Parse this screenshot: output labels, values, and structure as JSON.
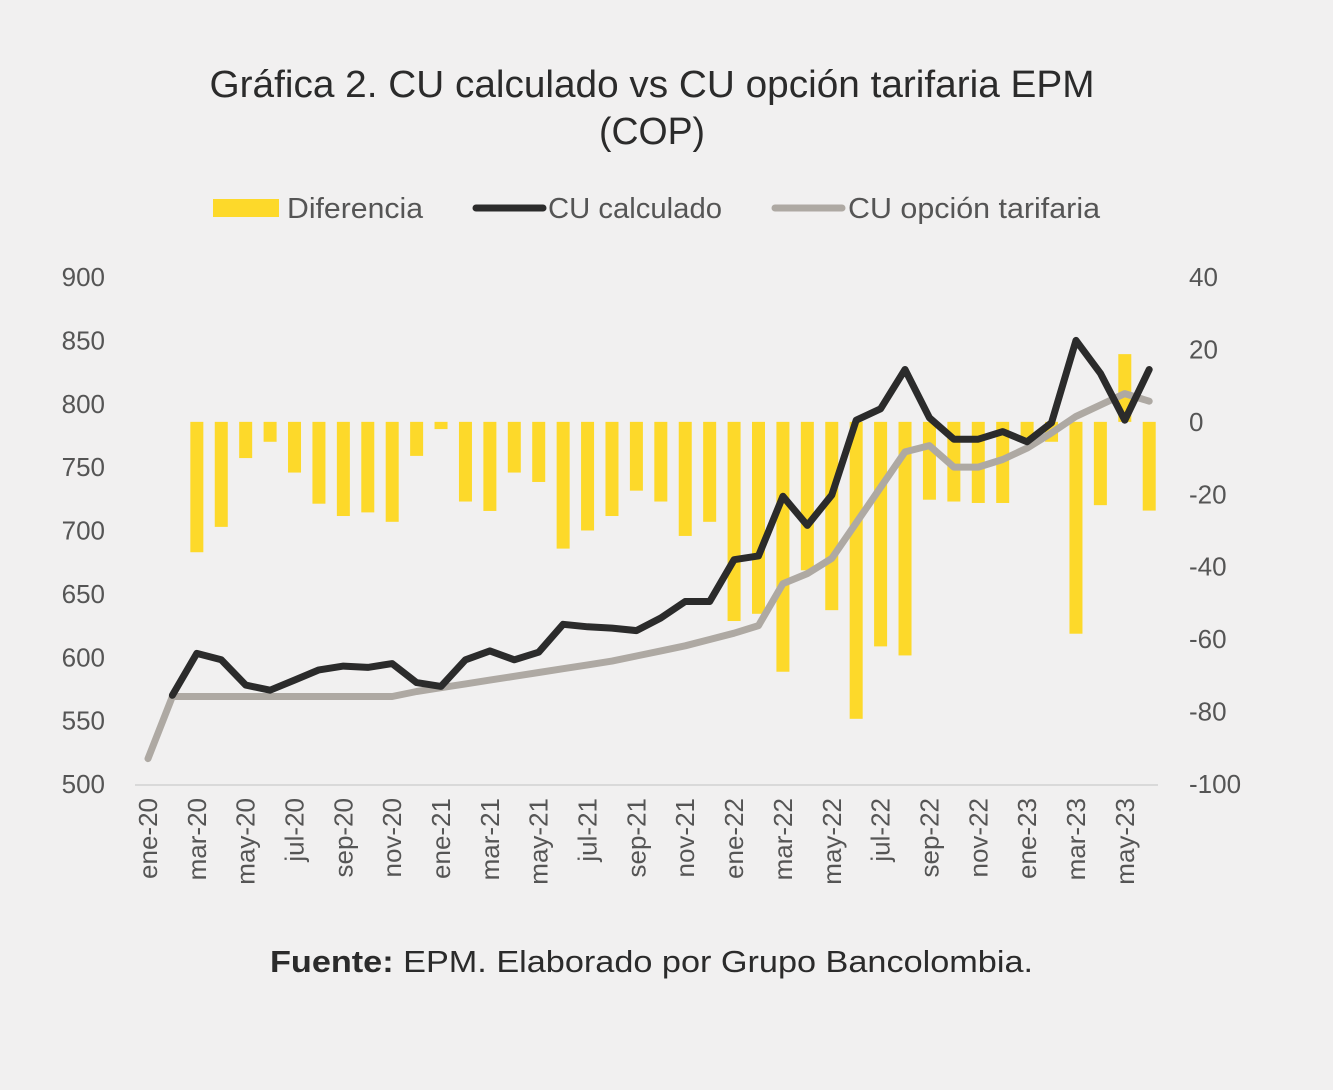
{
  "chart_data": {
    "type": "bar+line",
    "title": "Gráfica 2. CU calculado vs CU opción tarifaria EPM",
    "subtitle": "(COP)",
    "legend_placement": "top",
    "grid": false,
    "x": [
      "ene-20",
      "feb-20",
      "mar-20",
      "abr-20",
      "may-20",
      "jun-20",
      "jul-20",
      "ago-20",
      "sep-20",
      "oct-20",
      "nov-20",
      "dic-20",
      "ene-21",
      "feb-21",
      "mar-21",
      "abr-21",
      "may-21",
      "jun-21",
      "jul-21",
      "ago-21",
      "sep-21",
      "oct-21",
      "nov-21",
      "dic-21",
      "ene-22",
      "feb-22",
      "mar-22",
      "abr-22",
      "may-22",
      "jun-22",
      "jul-22",
      "ago-22",
      "sep-22",
      "oct-22",
      "nov-22",
      "dic-22",
      "ene-23",
      "feb-23",
      "mar-23",
      "abr-23",
      "may-23",
      "jun-23"
    ],
    "x_tick_labels": [
      "ene-20",
      "mar-20",
      "may-20",
      "jul-20",
      "sep-20",
      "nov-20",
      "ene-21",
      "mar-21",
      "may-21",
      "jul-21",
      "sep-21",
      "nov-21",
      "ene-22",
      "mar-22",
      "may-22",
      "jul-22",
      "sep-22",
      "nov-22",
      "ene-23",
      "mar-23",
      "may-23"
    ],
    "left_axis": {
      "ylim": [
        500,
        900
      ],
      "ticks": [
        "900",
        "850",
        "800",
        "750",
        "700",
        "650",
        "600",
        "550",
        "500"
      ]
    },
    "right_axis": {
      "ylim": [
        -100,
        40
      ],
      "ticks": [
        "40",
        "20",
        "0",
        "-20",
        "-40",
        "-60",
        "-80",
        "-100"
      ]
    },
    "series": [
      {
        "name": "Diferencia",
        "type": "bar",
        "axis": "right",
        "color": "#fdd92a",
        "values": [
          null,
          0,
          -36,
          -29,
          -10,
          -5.5,
          -14,
          -22.6,
          -26,
          -25,
          -27.6,
          -9.4,
          -2,
          -22,
          -24.6,
          -14,
          -16.6,
          -35,
          -30,
          -26,
          -19,
          -22,
          -31.5,
          -27.6,
          -55,
          -53,
          -69,
          -41,
          -52,
          -82,
          -62,
          -64.5,
          -21.5,
          -22,
          -22.4,
          -22.4,
          -5,
          -5.5,
          -58.5,
          -23,
          18.7,
          -24.5
        ]
      },
      {
        "name": "CU calculado",
        "type": "line",
        "axis": "left",
        "color": "#2b2b2b",
        "values": [
          null,
          570,
          603,
          598,
          578,
          574,
          582,
          590,
          593,
          592,
          595,
          580,
          577,
          598,
          605,
          598,
          604,
          626,
          624,
          623,
          621,
          631,
          644,
          644,
          677,
          680,
          727,
          704,
          728,
          787,
          796,
          827,
          789,
          772,
          772,
          778,
          770,
          785,
          850,
          824,
          787,
          827
        ]
      },
      {
        "name": "CU opción tarifaria",
        "type": "line",
        "axis": "left",
        "color": "#aea9a3",
        "values": [
          520,
          569,
          569,
          569,
          569,
          569,
          569,
          569,
          569,
          569,
          569,
          573,
          576,
          579,
          582,
          585,
          588,
          591,
          594,
          597,
          601,
          605,
          609,
          614,
          619,
          625,
          658,
          666,
          678,
          706,
          734,
          762,
          767,
          750,
          750,
          756,
          765,
          777,
          790,
          799,
          808,
          802
        ]
      }
    ]
  },
  "footer": {
    "source_label": "Fuente:",
    "source_text": " EPM. Elaborado por Grupo Bancolombia."
  },
  "colors": {
    "background": "#f1f0f0",
    "bar": "#fdd92a",
    "calculado": "#2b2b2b",
    "tarifaria": "#aea9a3"
  }
}
